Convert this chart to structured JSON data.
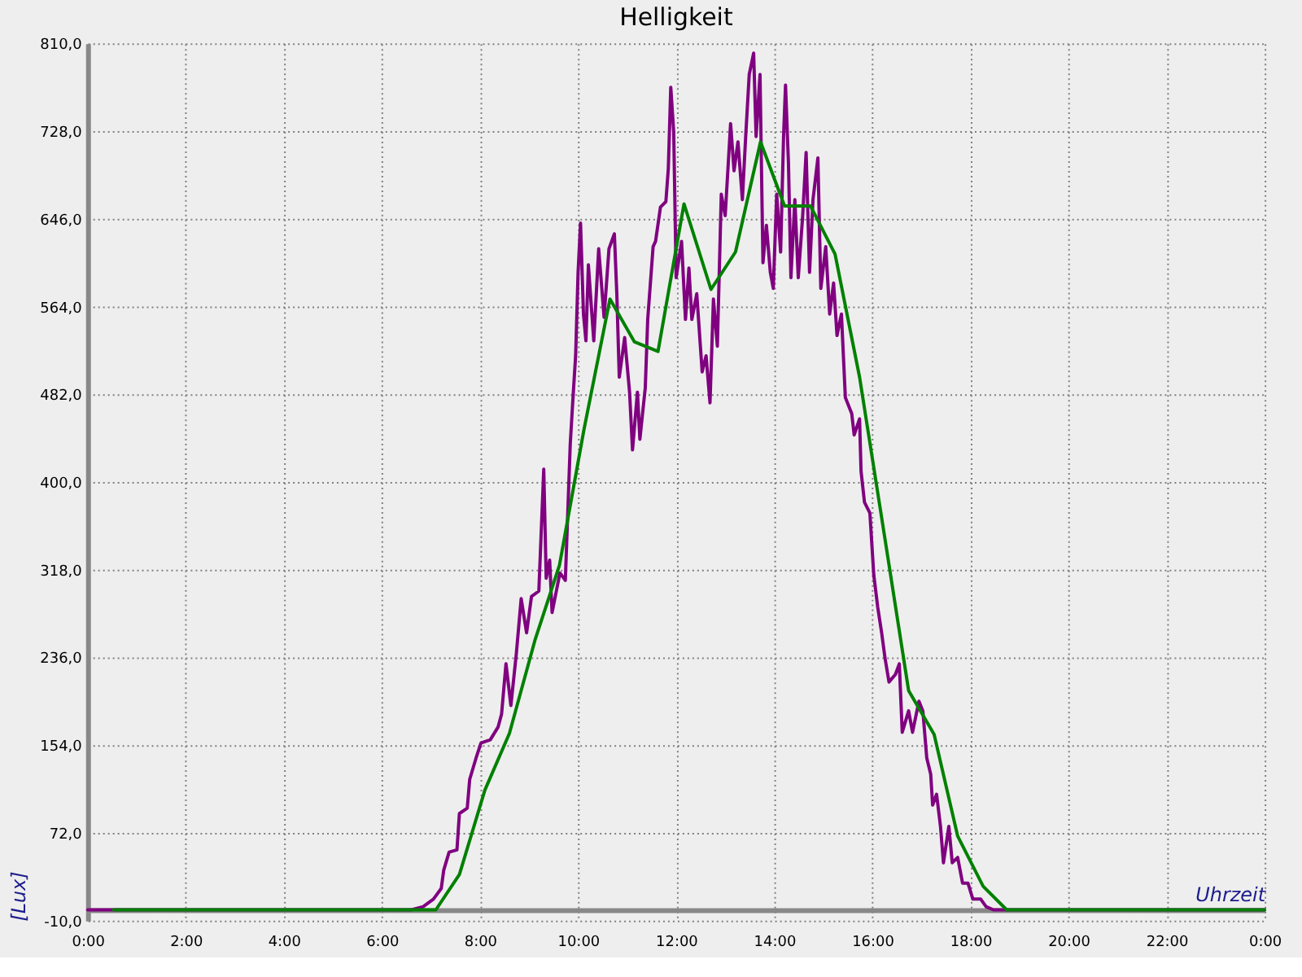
{
  "chart_data": {
    "type": "line",
    "title": "Helligkeit",
    "xlabel": "Uhrzeit",
    "ylabel": "[Lux]",
    "xlim": [
      0,
      24
    ],
    "ylim": [
      -10,
      810
    ],
    "xticks": [
      {
        "value": 0,
        "label": "0:00"
      },
      {
        "value": 2,
        "label": "2:00"
      },
      {
        "value": 4,
        "label": "4:00"
      },
      {
        "value": 6,
        "label": "6:00"
      },
      {
        "value": 8,
        "label": "8:00"
      },
      {
        "value": 10,
        "label": "10:00"
      },
      {
        "value": 12,
        "label": "12:00"
      },
      {
        "value": 14,
        "label": "14:00"
      },
      {
        "value": 16,
        "label": "16:00"
      },
      {
        "value": 18,
        "label": "18:00"
      },
      {
        "value": 20,
        "label": "20:00"
      },
      {
        "value": 22,
        "label": "22:00"
      },
      {
        "value": 24,
        "label": "0:00"
      }
    ],
    "yticks": [
      {
        "value": -10,
        "label": "-10,0"
      },
      {
        "value": 72,
        "label": "72,0"
      },
      {
        "value": 154,
        "label": "154,0"
      },
      {
        "value": 236,
        "label": "236,0"
      },
      {
        "value": 318,
        "label": "318,0"
      },
      {
        "value": 400,
        "label": "400,0"
      },
      {
        "value": 482,
        "label": "482,0"
      },
      {
        "value": 564,
        "label": "564,0"
      },
      {
        "value": 646,
        "label": "646,0"
      },
      {
        "value": 728,
        "label": "728,0"
      },
      {
        "value": 810,
        "label": "810,0"
      }
    ],
    "grid": true,
    "series": [
      {
        "color": "#800080",
        "x": [
          0,
          6.6,
          6.84,
          7.05,
          7.21,
          7.26,
          7.37,
          7.53,
          7.58,
          7.74,
          7.79,
          7.92,
          8.02,
          8.21,
          8.37,
          8.44,
          8.53,
          8.63,
          8.74,
          8.84,
          8.95,
          9.05,
          9.2,
          9.3,
          9.35,
          9.42,
          9.47,
          9.63,
          9.74,
          9.84,
          9.89,
          9.95,
          10.0,
          10.05,
          10.11,
          10.16,
          10.21,
          10.32,
          10.42,
          10.53,
          10.63,
          10.74,
          10.79,
          10.84,
          10.95,
          11.05,
          11.11,
          11.21,
          11.26,
          11.37,
          11.42,
          11.53,
          11.58,
          11.68,
          11.79,
          11.84,
          11.89,
          11.95,
          12.0,
          12.11,
          12.19,
          12.26,
          12.32,
          12.42,
          12.53,
          12.61,
          12.69,
          12.76,
          12.84,
          12.92,
          13.0,
          13.11,
          13.18,
          13.26,
          13.35,
          13.42,
          13.49,
          13.58,
          13.63,
          13.71,
          13.77,
          13.84,
          13.92,
          13.98,
          14.05,
          14.13,
          14.19,
          14.23,
          14.29,
          14.34,
          14.42,
          14.49,
          14.58,
          14.65,
          14.72,
          14.79,
          14.89,
          14.95,
          15.05,
          15.13,
          15.21,
          15.28,
          15.37,
          15.45,
          15.58,
          15.63,
          15.74,
          15.77,
          15.84,
          15.95,
          16.03,
          16.11,
          16.19,
          16.26,
          16.34,
          16.47,
          16.55,
          16.61,
          16.74,
          16.82,
          16.95,
          17.03,
          17.11,
          17.19,
          17.23,
          17.31,
          17.39,
          17.45,
          17.56,
          17.63,
          17.74,
          17.84,
          17.95,
          18.05,
          18.21,
          18.32,
          18.47,
          24
        ],
        "values": [
          0,
          0,
          3,
          10,
          20,
          37,
          54,
          56,
          90,
          95,
          122,
          142,
          156,
          159,
          171,
          183,
          230,
          191,
          239,
          291,
          259,
          293,
          298,
          412,
          310,
          327,
          278,
          315,
          308,
          435,
          474,
          518,
          596,
          642,
          557,
          532,
          603,
          532,
          618,
          554,
          618,
          632,
          576,
          498,
          535,
          484,
          430,
          484,
          440,
          488,
          552,
          620,
          625,
          657,
          662,
          693,
          769,
          727,
          591,
          625,
          552,
          600,
          552,
          576,
          503,
          518,
          474,
          571,
          527,
          669,
          649,
          735,
          691,
          718,
          664,
          725,
          781,
          801,
          723,
          781,
          605,
          640,
          596,
          581,
          669,
          615,
          723,
          771,
          698,
          591,
          664,
          591,
          649,
          708,
          596,
          664,
          703,
          581,
          620,
          557,
          586,
          537,
          557,
          479,
          464,
          444,
          459,
          410,
          381,
          371,
          313,
          283,
          259,
          235,
          213,
          220,
          230,
          166,
          186,
          166,
          195,
          186,
          142,
          127,
          98,
          108,
          78,
          44,
          78,
          44,
          49,
          25,
          25,
          10,
          10,
          3,
          0,
          0
        ]
      },
      {
        "color": "#008000",
        "x": [
          0.53,
          7.1,
          7.58,
          8.1,
          8.6,
          9.12,
          9.62,
          10.12,
          10.65,
          11.15,
          11.63,
          12.16,
          12.71,
          13.21,
          13.72,
          14.21,
          14.74,
          15.24,
          15.74,
          16.24,
          16.74,
          17.26,
          17.74,
          18.26,
          18.74,
          24
        ],
        "values": [
          0,
          0,
          33,
          112,
          165,
          252,
          322,
          449,
          571,
          531,
          522,
          660,
          580,
          615,
          718,
          658,
          658,
          613,
          498,
          352,
          205,
          164,
          69,
          22,
          0,
          0
        ]
      }
    ]
  }
}
